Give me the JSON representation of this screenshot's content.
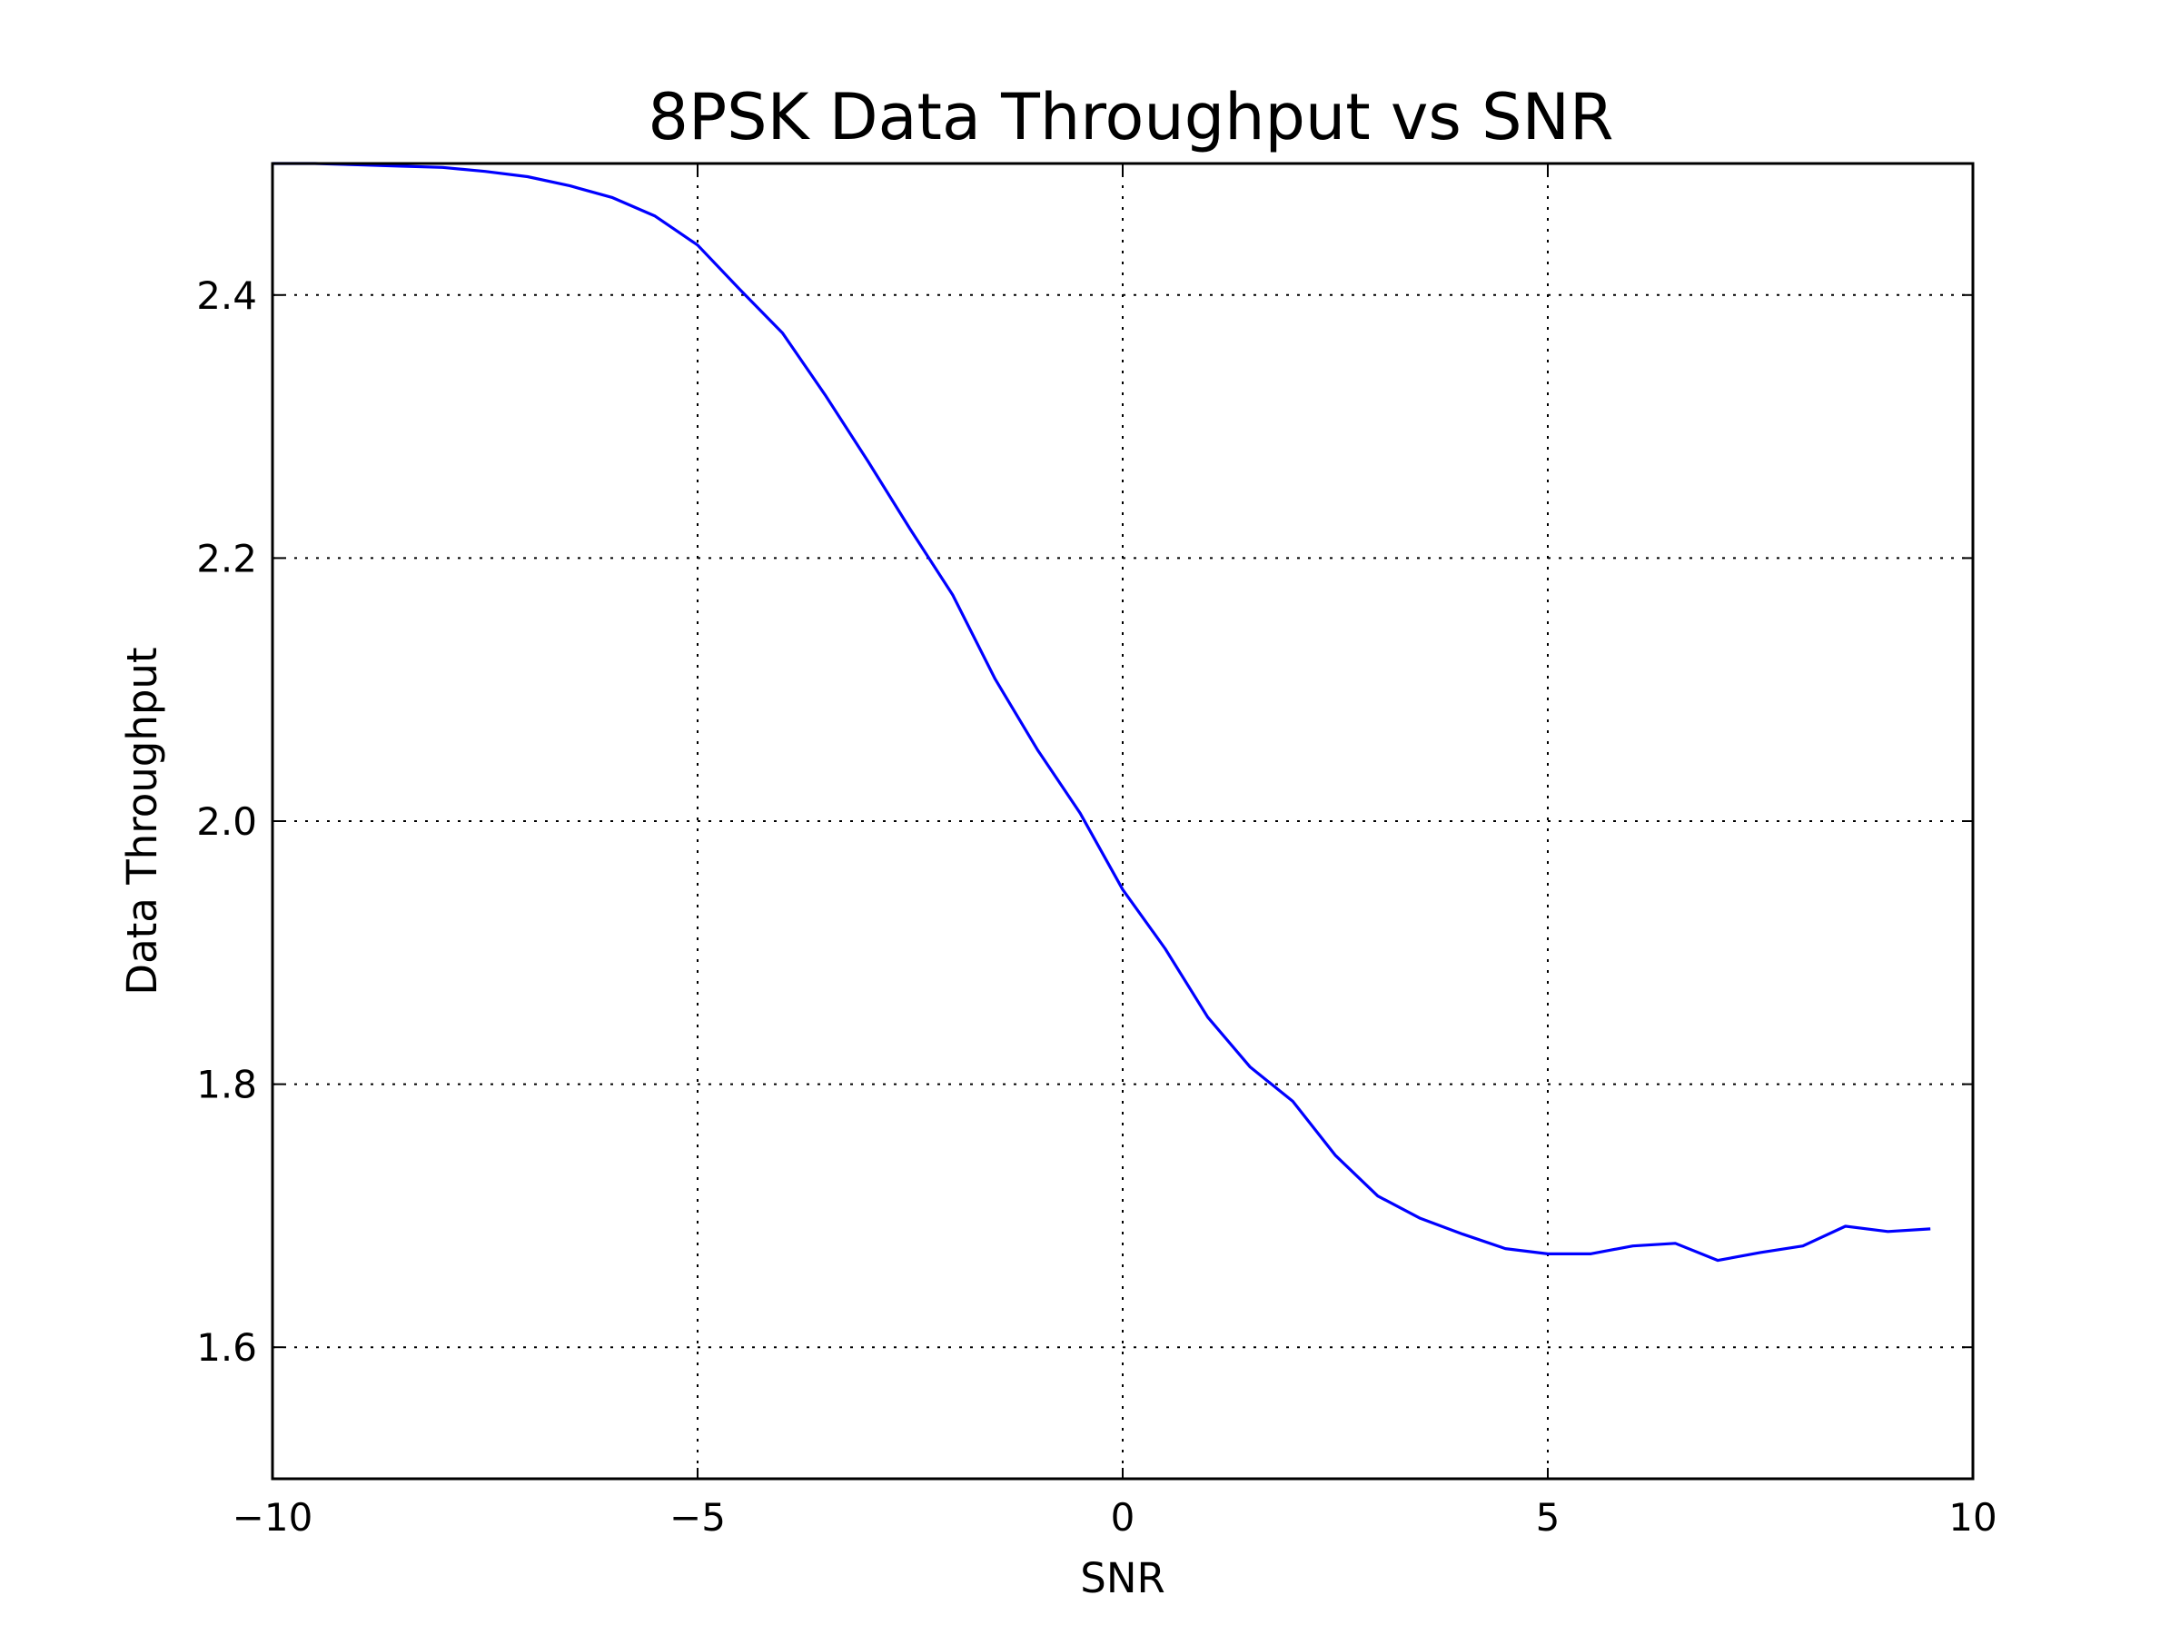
{
  "chart_data": {
    "type": "line",
    "title": "8PSK Data Throughput vs SNR",
    "xlabel": "SNR",
    "ylabel": "Data Throughput",
    "xlim": [
      -10,
      10
    ],
    "ylim": [
      1.5,
      2.5
    ],
    "xticks": [
      -10,
      -5,
      0,
      5,
      10
    ],
    "xtick_labels": [
      "−10",
      "−5",
      "0",
      "5",
      "10"
    ],
    "yticks": [
      1.6,
      1.8,
      2.0,
      2.2,
      2.4
    ],
    "ytick_labels": [
      "1.6",
      "1.8",
      "2.0",
      "2.2",
      "2.4"
    ],
    "grid": true,
    "grid_style": "dotted",
    "line_color": "#0000ff",
    "series": [
      {
        "x": [
          -10,
          -9.5,
          -9,
          -8.5,
          -8,
          -7.5,
          -7,
          -6.5,
          -6,
          -5.5,
          -5,
          -4.5,
          -4,
          -3.5,
          -3,
          -2.5,
          -2,
          -1.5,
          -1,
          -0.5,
          0,
          0.5,
          1,
          1.5,
          2,
          2.5,
          3,
          3.5,
          4,
          4.5,
          5,
          5.5,
          6,
          6.5,
          7,
          7.5,
          8,
          8.5,
          9,
          9.5
        ],
        "y": [
          2.5,
          2.5,
          2.499,
          2.498,
          2.497,
          2.494,
          2.49,
          2.483,
          2.474,
          2.46,
          2.438,
          2.404,
          2.371,
          2.324,
          2.274,
          2.222,
          2.172,
          2.108,
          2.054,
          2.006,
          1.948,
          1.903,
          1.851,
          1.813,
          1.787,
          1.746,
          1.715,
          1.698,
          1.686,
          1.675,
          1.671,
          1.671,
          1.677,
          1.679,
          1.666,
          1.672,
          1.677,
          1.692,
          1.688,
          1.69
        ]
      }
    ]
  }
}
